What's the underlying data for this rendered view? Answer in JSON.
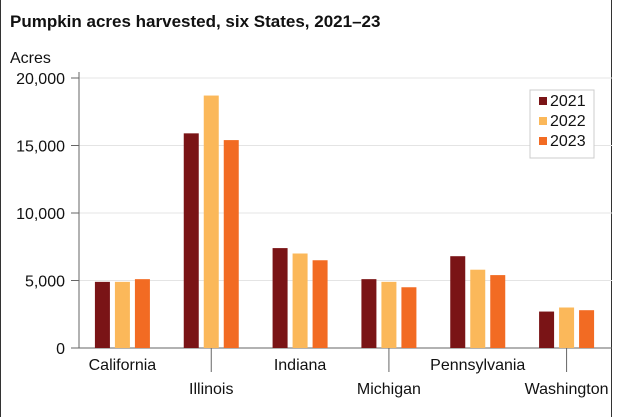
{
  "chart_data": {
    "type": "bar",
    "title": "Pumpkin acres harvested, six States, 2021–23",
    "ylabel": "Acres",
    "xlabel": "",
    "ylim": [
      0,
      20000
    ],
    "yticks": [
      0,
      5000,
      10000,
      15000,
      20000
    ],
    "ytick_labels": [
      "0",
      "5,000",
      "10,000",
      "15,000",
      "20,000"
    ],
    "grid": true,
    "legend_position": "top-right",
    "categories": [
      "California",
      "Illinois",
      "Indiana",
      "Michigan",
      "Pennsylvania",
      "Washington"
    ],
    "series": [
      {
        "name": "2021",
        "color": "#7a1416",
        "values": [
          4900,
          15900,
          7400,
          5100,
          6800,
          2700
        ]
      },
      {
        "name": "2022",
        "color": "#fbb85a",
        "values": [
          4900,
          18700,
          7000,
          4900,
          5800,
          3000
        ]
      },
      {
        "name": "2023",
        "color": "#f26b23",
        "values": [
          5100,
          15400,
          6500,
          4500,
          5400,
          2800
        ]
      }
    ]
  }
}
